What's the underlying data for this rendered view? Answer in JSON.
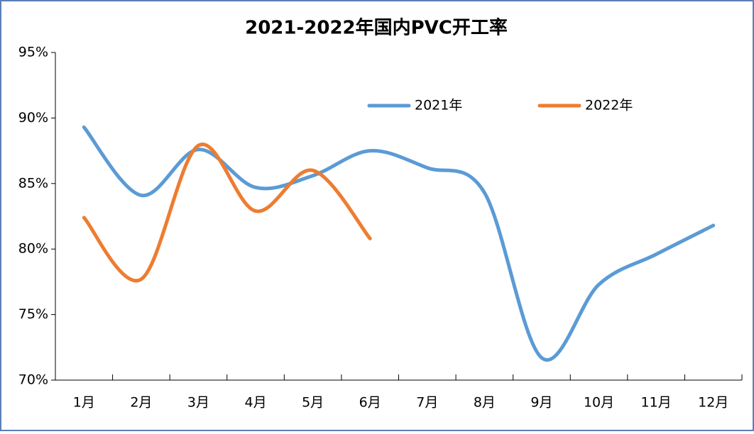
{
  "chart_data": {
    "type": "line",
    "title": "2021-2022年国内PVC开工率",
    "categories": [
      "1月",
      "2月",
      "3月",
      "4月",
      "5月",
      "6月",
      "7月",
      "8月",
      "9月",
      "10月",
      "11月",
      "12月"
    ],
    "series": [
      {
        "name": "2021年",
        "color": "#5b9bd5",
        "values": [
          89.3,
          84.1,
          87.6,
          84.7,
          85.6,
          87.5,
          86.2,
          84.3,
          71.7,
          77.3,
          79.6,
          81.8
        ]
      },
      {
        "name": "2022年",
        "color": "#ed7d31",
        "values": [
          82.4,
          77.7,
          87.9,
          82.9,
          86.0,
          80.8,
          null,
          null,
          null,
          null,
          null,
          null
        ]
      }
    ],
    "ylim": [
      70,
      95
    ],
    "yticks": [
      {
        "value": 70,
        "label": "70%"
      },
      {
        "value": 75,
        "label": "75%"
      },
      {
        "value": 80,
        "label": "80%"
      },
      {
        "value": 85,
        "label": "85%"
      },
      {
        "value": 90,
        "label": "90%"
      },
      {
        "value": 95,
        "label": "95%"
      }
    ],
    "grid": false,
    "legend": "top-right"
  }
}
